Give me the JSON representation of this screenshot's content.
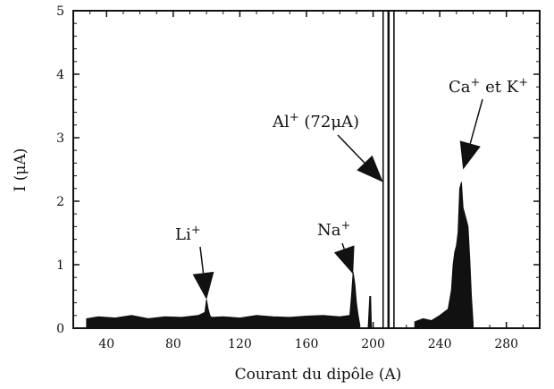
{
  "chart_data": {
    "type": "area",
    "xlabel": "Courant du dipôle (A)",
    "ylabel": "I (μA)",
    "xlim": [
      20,
      300
    ],
    "ylim": [
      0,
      5
    ],
    "x_ticks": [
      40,
      80,
      120,
      160,
      200,
      240,
      280
    ],
    "x_tick_labels": [
      "40",
      "80",
      "120",
      "160",
      "200",
      "240",
      "280"
    ],
    "y_ticks": [
      0,
      1,
      2,
      3,
      4,
      5
    ],
    "y_tick_labels": [
      "0",
      "1",
      "2",
      "3",
      "4",
      "5"
    ],
    "grid": false,
    "series": [
      {
        "color": "#111111",
        "x": [
          28,
          35,
          45,
          55,
          65,
          75,
          85,
          95,
          99,
          100,
          101,
          102,
          103,
          110,
          120,
          130,
          140,
          150,
          160,
          170,
          180,
          186,
          187,
          188,
          189,
          190,
          191,
          192
        ],
        "y": [
          0.15,
          0.18,
          0.16,
          0.2,
          0.15,
          0.18,
          0.17,
          0.2,
          0.25,
          0.45,
          0.3,
          0.2,
          0.17,
          0.18,
          0.16,
          0.2,
          0.18,
          0.17,
          0.19,
          0.2,
          0.18,
          0.2,
          0.5,
          0.88,
          0.7,
          0.4,
          0.2,
          0.05
        ]
      },
      {
        "color": "#111111",
        "x": [
          197,
          198,
          198.5,
          199
        ],
        "y": [
          0,
          0.5,
          0.5,
          0
        ]
      },
      {
        "color": "#111111",
        "x": [
          225,
          230,
          235,
          240,
          245,
          247,
          248,
          249,
          250,
          251,
          252,
          253,
          254,
          255,
          256,
          257,
          258,
          259,
          260
        ],
        "y": [
          0.1,
          0.15,
          0.12,
          0.2,
          0.3,
          0.6,
          1.0,
          1.2,
          1.3,
          1.5,
          2.2,
          2.3,
          1.9,
          1.8,
          1.7,
          1.6,
          1.1,
          0.5,
          0.1
        ]
      }
    ],
    "off_scale_peaks": [
      {
        "x0": 206,
        "x1": 209,
        "y": 5
      },
      {
        "x0": 209.5,
        "x1": 212.5,
        "y": 5
      }
    ],
    "annotations": [
      {
        "text_main": "Li",
        "text_sup": "+",
        "tip_x": 100,
        "tip_y": 0.45
      },
      {
        "text_main": "Na",
        "text_sup": "+",
        "tip_x": 188,
        "tip_y": 0.85
      },
      {
        "text_main": "Al",
        "text_sup": "+",
        "text_rest": " (72μA)",
        "tip_x": 206,
        "tip_y": 2.3
      },
      {
        "text_main": "Ca",
        "text_sup": "+",
        "text_rest": " et K",
        "text_sup2": "+",
        "tip_x": 254,
        "tip_y": 2.5
      }
    ]
  }
}
